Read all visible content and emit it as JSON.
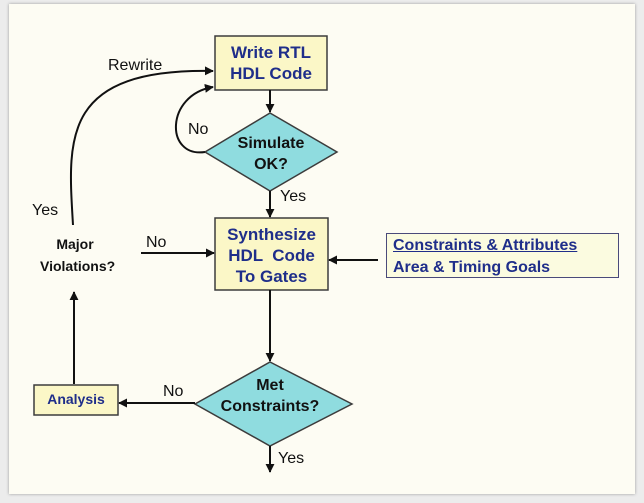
{
  "colors": {
    "box_fill": "#fbf7c7",
    "box_border": "#3c3c3c",
    "diamond_fill": "#8fdcdf",
    "box_text": "#1f2e8a",
    "arrow": "#111111"
  },
  "nodes": {
    "write_rtl": {
      "lines": [
        "Write RTL",
        "HDL Code"
      ]
    },
    "simulate": {
      "lines": [
        "Simulate",
        "OK?"
      ]
    },
    "synthesize": {
      "lines": [
        "Synthesize",
        "HDL  Code",
        "To Gates"
      ]
    },
    "met_constraints": {
      "lines": [
        "Met",
        "Constraints?"
      ]
    },
    "analysis": {
      "label": "Analysis"
    },
    "major_violations": {
      "lines": [
        "Major",
        "Violations?"
      ]
    },
    "constraints_panel": {
      "line1": "Constraints & Attributes",
      "line2": "Area & Timing Goals"
    }
  },
  "edge_labels": {
    "rewrite": "Rewrite",
    "sim_no": "No",
    "sim_yes": "Yes",
    "major_yes": "Yes",
    "major_no": "No",
    "met_no": "No",
    "met_yes": "Yes"
  }
}
